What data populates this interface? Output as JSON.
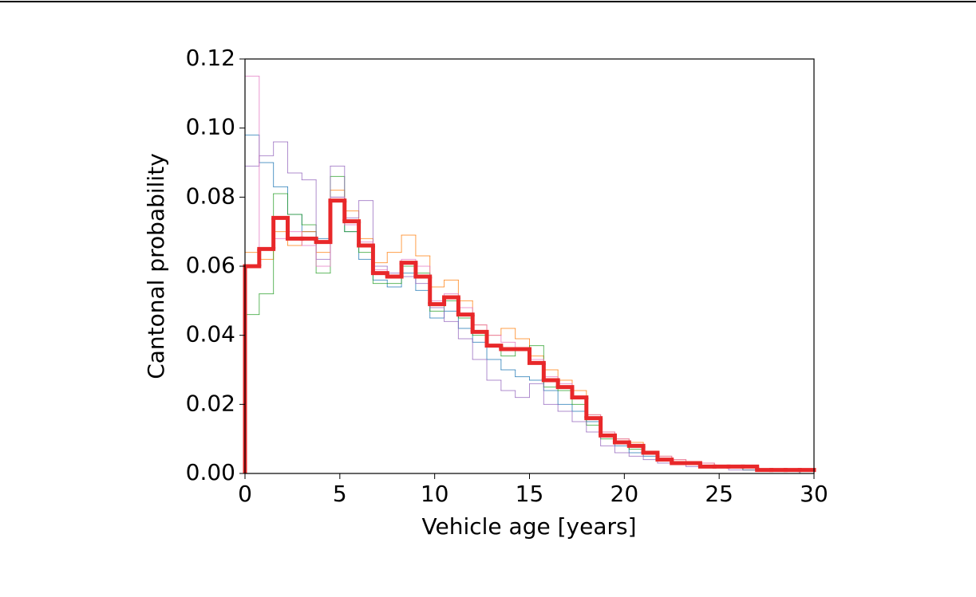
{
  "chart_data": {
    "type": "histogram",
    "xlabel": "Vehicle age [years]",
    "ylabel": "Cantonal probability",
    "bins": [
      0,
      0.75,
      1.5,
      2.25,
      3,
      3.75,
      4.5,
      5.25,
      6,
      6.75,
      7.5,
      8.25,
      9,
      9.75,
      10.5,
      11.25,
      12,
      12.75,
      13.5,
      14.25,
      15,
      15.75,
      16.5,
      17.25,
      18,
      18.75,
      19.5,
      20.25,
      21,
      21.75,
      22.5,
      23.25,
      24,
      24.75,
      25.5,
      26.25,
      27,
      27.75,
      28.5,
      29.25,
      30
    ],
    "series": [
      {
        "color": "#1f77b4",
        "width": 1,
        "values": [
          0.098,
          0.09,
          0.083,
          0.075,
          0.07,
          0.068,
          0.08,
          0.07,
          0.062,
          0.056,
          0.054,
          0.058,
          0.053,
          0.045,
          0.047,
          0.042,
          0.038,
          0.033,
          0.03,
          0.028,
          0.027,
          0.024,
          0.02,
          0.018,
          0.015,
          0.011,
          0.008,
          0.006,
          0.005,
          0.004,
          0.003,
          0.003,
          0.002,
          0.002,
          0.002,
          0.001,
          0.001,
          0.001,
          0.001,
          0.001
        ]
      },
      {
        "color": "#ff7f0e",
        "width": 1,
        "values": [
          0.064,
          0.062,
          0.07,
          0.066,
          0.07,
          0.064,
          0.082,
          0.076,
          0.068,
          0.061,
          0.064,
          0.069,
          0.063,
          0.054,
          0.056,
          0.05,
          0.043,
          0.04,
          0.042,
          0.039,
          0.034,
          0.03,
          0.027,
          0.024,
          0.017,
          0.012,
          0.01,
          0.009,
          0.006,
          0.005,
          0.004,
          0.003,
          0.003,
          0.002,
          0.002,
          0.002,
          0.001,
          0.001,
          0.001,
          0.001
        ]
      },
      {
        "color": "#2ca02c",
        "width": 1,
        "values": [
          0.046,
          0.052,
          0.081,
          0.075,
          0.072,
          0.058,
          0.086,
          0.07,
          0.064,
          0.055,
          0.055,
          0.06,
          0.058,
          0.047,
          0.05,
          0.045,
          0.04,
          0.037,
          0.034,
          0.036,
          0.037,
          0.025,
          0.024,
          0.02,
          0.014,
          0.01,
          0.009,
          0.007,
          0.006,
          0.004,
          0.003,
          0.003,
          0.002,
          0.002,
          0.002,
          0.001,
          0.001,
          0.001,
          0.001,
          0.0
        ]
      },
      {
        "color": "#9467bd",
        "width": 1,
        "values": [
          0.089,
          0.092,
          0.096,
          0.087,
          0.085,
          0.062,
          0.089,
          0.074,
          0.079,
          0.06,
          0.058,
          0.057,
          0.055,
          0.048,
          0.044,
          0.039,
          0.033,
          0.027,
          0.024,
          0.022,
          0.026,
          0.02,
          0.018,
          0.015,
          0.012,
          0.008,
          0.006,
          0.005,
          0.004,
          0.003,
          0.003,
          0.002,
          0.002,
          0.002,
          0.001,
          0.001,
          0.001,
          0.001,
          0.001,
          0.0
        ]
      },
      {
        "color": "#e377c2",
        "width": 1,
        "values": [
          0.115,
          0.065,
          0.068,
          0.07,
          0.066,
          0.06,
          0.08,
          0.072,
          0.067,
          0.059,
          0.057,
          0.062,
          0.06,
          0.05,
          0.052,
          0.048,
          0.043,
          0.04,
          0.038,
          0.036,
          0.033,
          0.028,
          0.026,
          0.022,
          0.017,
          0.012,
          0.01,
          0.008,
          0.006,
          0.005,
          0.004,
          0.003,
          0.003,
          0.002,
          0.002,
          0.002,
          0.001,
          0.001,
          0.001,
          0.001
        ]
      },
      {
        "color": "#e8282a",
        "width": 5,
        "values": [
          0.06,
          0.065,
          0.074,
          0.068,
          0.068,
          0.067,
          0.079,
          0.073,
          0.066,
          0.058,
          0.057,
          0.061,
          0.057,
          0.049,
          0.051,
          0.046,
          0.041,
          0.037,
          0.036,
          0.036,
          0.032,
          0.027,
          0.025,
          0.022,
          0.016,
          0.011,
          0.009,
          0.008,
          0.006,
          0.004,
          0.003,
          0.003,
          0.002,
          0.002,
          0.002,
          0.002,
          0.001,
          0.001,
          0.001,
          0.001
        ]
      }
    ],
    "xlim": [
      0,
      30
    ],
    "xticks": [
      0,
      5,
      10,
      15,
      20,
      25,
      30
    ],
    "ylim": [
      0,
      0.12
    ],
    "yticks": [
      {
        "value": 0,
        "label": "0.00"
      },
      0.02,
      0.04,
      0.06,
      0.08,
      {
        "value": 0.1,
        "label": "0.10"
      },
      0.12
    ]
  }
}
